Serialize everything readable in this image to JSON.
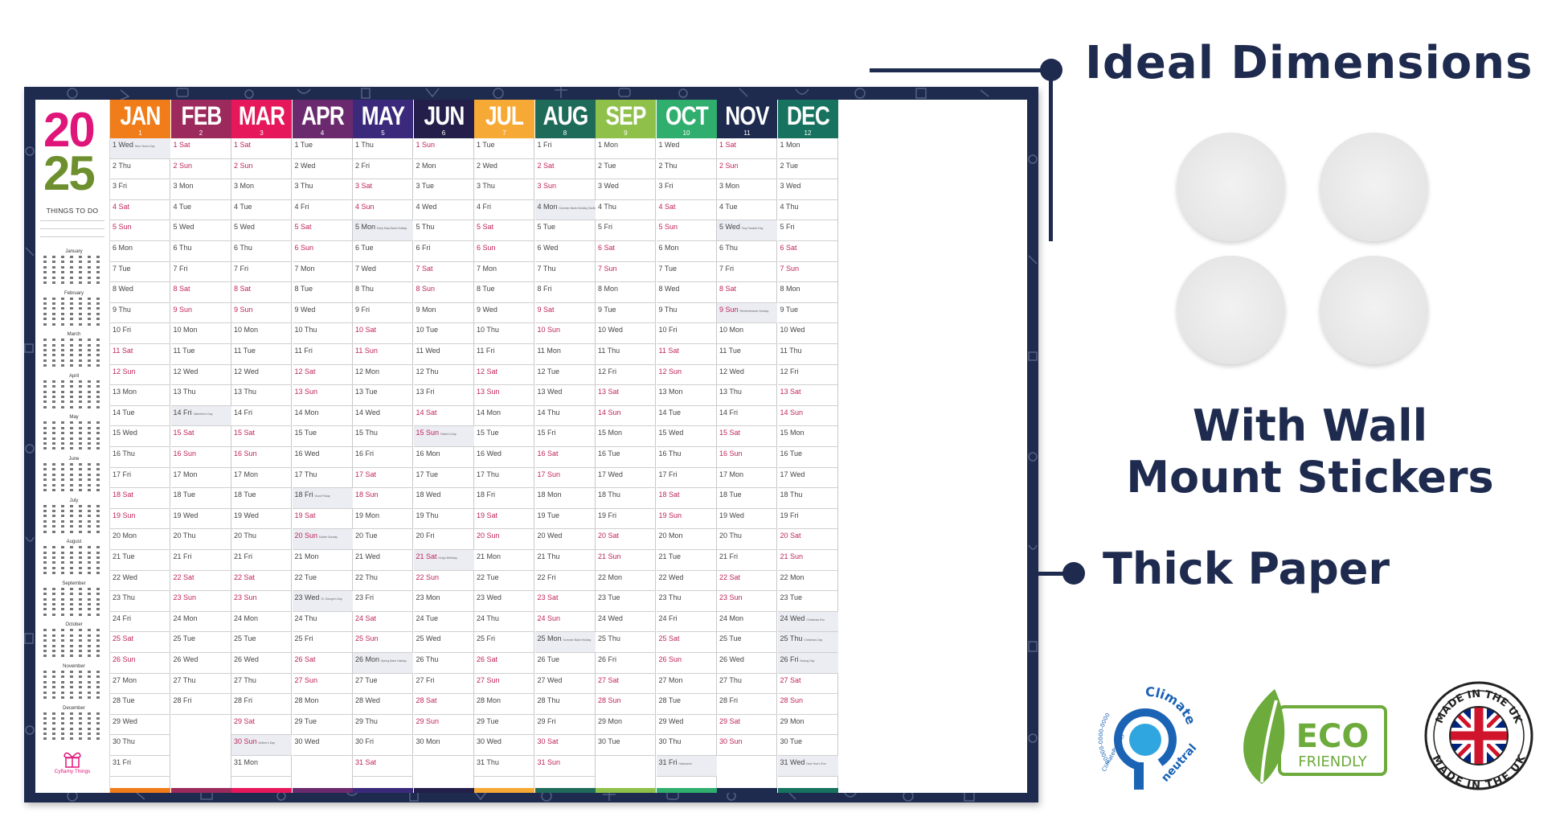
{
  "calendar": {
    "year_top": "20",
    "year_bottom": "25",
    "things_to_do": "THINGS TO DO",
    "brand": "Cyflamy Things",
    "mini_months": [
      "January",
      "February",
      "March",
      "April",
      "May",
      "June",
      "July",
      "August",
      "September",
      "October",
      "November",
      "December"
    ],
    "months": [
      {
        "name": "JAN",
        "num": "1",
        "color": "#f07d1a",
        "start": 3,
        "days": 31,
        "holidays": {
          "1": "New Year's Day"
        }
      },
      {
        "name": "FEB",
        "num": "2",
        "color": "#9c2a5c",
        "start": 6,
        "days": 28,
        "holidays": {
          "14": "Valentine's Day"
        }
      },
      {
        "name": "MAR",
        "num": "3",
        "color": "#e6185b",
        "start": 6,
        "days": 31,
        "holidays": {
          "30": "Mother's Day"
        }
      },
      {
        "name": "APR",
        "num": "4",
        "color": "#6b2a6e",
        "start": 2,
        "days": 30,
        "holidays": {
          "18": "Good Friday",
          "20": "Easter Sunday",
          "23": "St. George's Day"
        }
      },
      {
        "name": "MAY",
        "num": "5",
        "color": "#3b2a7c",
        "start": 4,
        "days": 31,
        "holidays": {
          "5": "Early May Bank Holiday",
          "26": "Spring Bank Holiday"
        }
      },
      {
        "name": "JUN",
        "num": "6",
        "color": "#241f4a",
        "start": 0,
        "days": 30,
        "holidays": {
          "15": "Father's Day",
          "21": "King's Birthday"
        }
      },
      {
        "name": "JUL",
        "num": "7",
        "color": "#f7a935",
        "start": 2,
        "days": 31,
        "holidays": {}
      },
      {
        "name": "AUG",
        "num": "8",
        "color": "#1f6b5a",
        "start": 5,
        "days": 31,
        "holidays": {
          "4": "Summer Bank Holiday (Scotland)",
          "25": "Summer Bank Holiday"
        }
      },
      {
        "name": "SEP",
        "num": "9",
        "color": "#8fc14a",
        "start": 1,
        "days": 30,
        "holidays": {}
      },
      {
        "name": "OCT",
        "num": "10",
        "color": "#2fae6d",
        "start": 3,
        "days": 31,
        "holidays": {
          "31": "Halloween"
        }
      },
      {
        "name": "NOV",
        "num": "11",
        "color": "#1e2b4f",
        "start": 6,
        "days": 30,
        "holidays": {
          "5": "Guy Fawkes Day",
          "9": "Remembrance Sunday"
        }
      },
      {
        "name": "DEC",
        "num": "12",
        "color": "#17735f",
        "start": 1,
        "days": 31,
        "holidays": {
          "24": "Christmas Eve",
          "25": "Christmas Day",
          "26": "Boxing Day",
          "31": "New Year's Eve"
        }
      }
    ],
    "weekdays": [
      "Sun",
      "Mon",
      "Tue",
      "Wed",
      "Thu",
      "Fri",
      "Sat"
    ]
  },
  "features": {
    "ideal": "Ideal Dimensions",
    "wall_line1": "With Wall",
    "wall_line2": "Mount Stickers",
    "thick": "Thick Paper"
  },
  "badges": {
    "climate_top": "Climate",
    "climate_neutral": "neutral",
    "climate_partner": "ClimatePartner",
    "climate_id": "00000-0000-0000",
    "eco_line1": "ECO",
    "eco_line2": "FRIENDLY",
    "uk_text": "MADE IN THE UK"
  },
  "colors": {
    "navy": "#1e2b4f",
    "weekend": "#c0245b",
    "eco_green": "#6cab3c",
    "climate_blue": "#1b63b4",
    "uk_red": "#cf142b"
  }
}
